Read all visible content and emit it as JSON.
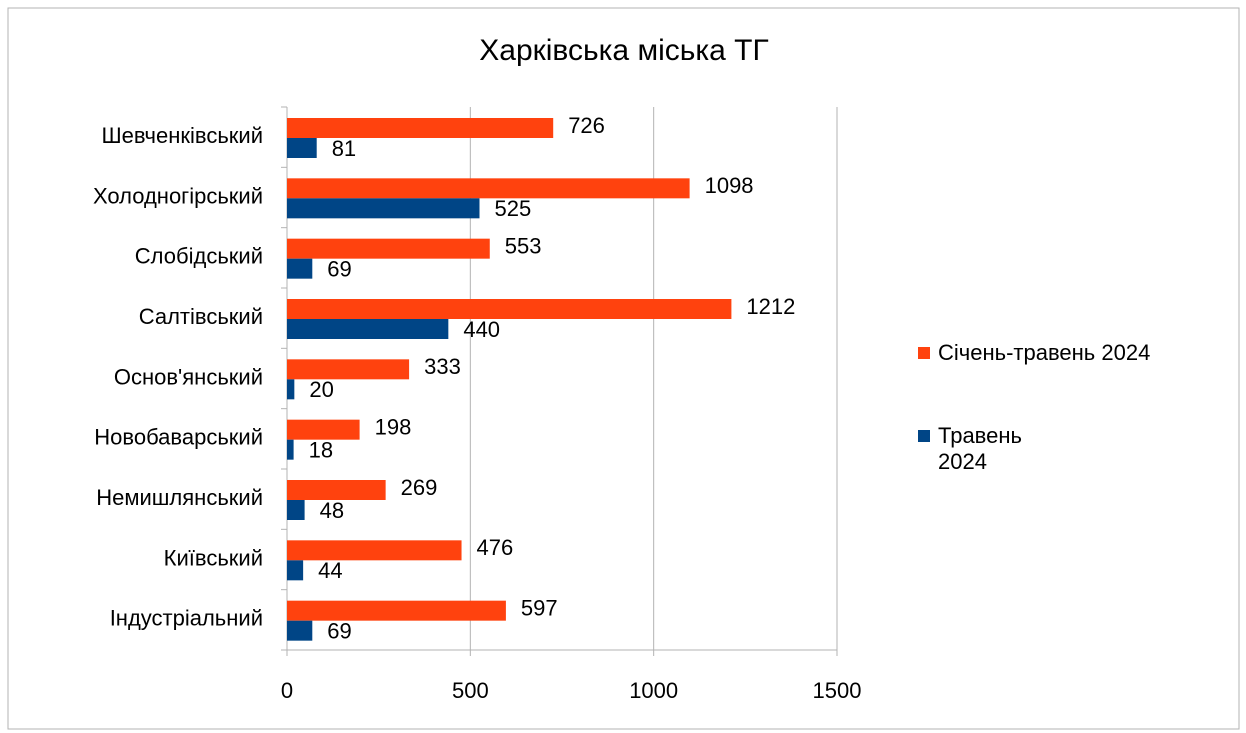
{
  "chart_data": {
    "type": "bar",
    "orientation": "horizontal",
    "title": "Харківська міська ТГ",
    "categories": [
      "Шевченківський",
      "Холодногірський",
      "Слобідський",
      "Салтівський",
      "Основ'янський",
      "Новобаварський",
      "Немишлянський",
      "Київський",
      "Індустріальний"
    ],
    "series": [
      {
        "name": "Січень-травень 2024",
        "color": "#ff420e",
        "values": [
          726,
          1098,
          553,
          1212,
          333,
          198,
          269,
          476,
          597
        ]
      },
      {
        "name": "Травень 2024",
        "color": "#004586",
        "values": [
          81,
          525,
          69,
          440,
          20,
          18,
          48,
          44,
          69
        ]
      }
    ],
    "xlim": [
      0,
      1500
    ],
    "xticks": [
      0,
      500,
      1000,
      1500
    ],
    "grid": true,
    "legend": "right"
  }
}
